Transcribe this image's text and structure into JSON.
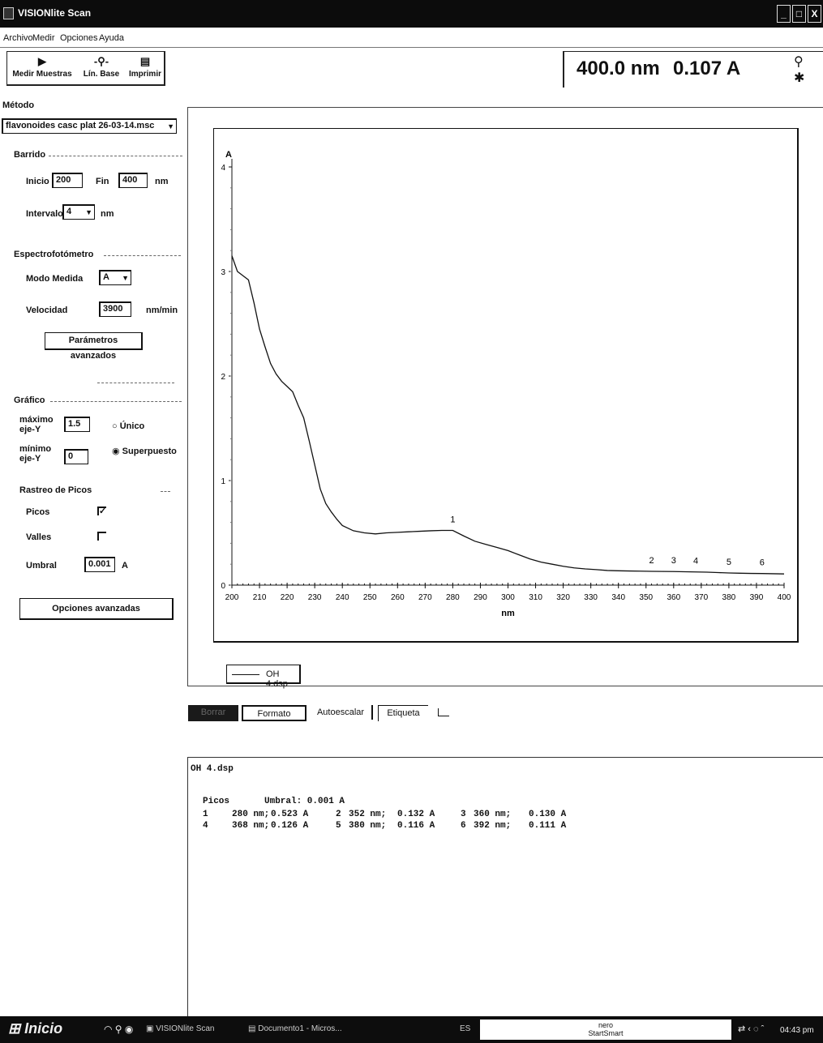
{
  "window": {
    "title": "VISIONlite Scan",
    "controls": [
      "_",
      "□",
      "X"
    ]
  },
  "menu": [
    "Archivo",
    "Medir",
    "Opciones",
    "Ayuda"
  ],
  "toolbar": {
    "measure_label": "Medir Muestras",
    "baseline_label": "Lín. Base",
    "print_label": "Imprimir"
  },
  "readout": {
    "wavelength": "400.0 nm",
    "absorbance": "0.107 A"
  },
  "method": {
    "label": "Método",
    "value": "flavonoides casc plat 26-03-14.msc"
  },
  "scan": {
    "label": "Barrido",
    "start_label": "Inicio",
    "start_value": "200",
    "end_label": "Fin",
    "end_value": "400",
    "unit": "nm",
    "interval_label": "Intervalo",
    "interval_value": "4",
    "interval_unit": "nm"
  },
  "spectro": {
    "label": "Espectrofotómetro",
    "mode_label": "Modo Medida",
    "mode_value": "A",
    "speed_label": "Velocidad",
    "speed_value": "3900",
    "speed_unit": "nm/min",
    "advanced_button": "Parámetros avanzados"
  },
  "graph_settings": {
    "label": "Gráfico",
    "ymax_label_1": "máximo",
    "ymax_label_2": "eje-Y",
    "ymax_value": "1.5",
    "ymin_label_1": "mínimo",
    "ymin_label_2": "eje-Y",
    "ymin_value": "0",
    "single_label": "Único",
    "overlay_label": "Superpuesto",
    "selected": "Superpuesto"
  },
  "peak_tracking": {
    "label": "Rastreo de Picos",
    "peaks_label": "Picos",
    "peaks_checked": true,
    "valleys_label": "Valles",
    "valleys_checked": false,
    "threshold_label": "Umbral",
    "threshold_value": "0.001",
    "threshold_unit": "A",
    "advanced_button": "Opciones avanzadas"
  },
  "graph_buttons": [
    "Borrar",
    "Formato",
    "Autoescalar",
    "Etiqueta"
  ],
  "legend": {
    "file": "OH 4.dsp"
  },
  "results": {
    "file": "OH 4.dsp",
    "header_peaks": "Picos",
    "header_threshold": "Umbral: 0.001 A",
    "rows": [
      [
        "1",
        "280 nm;",
        "0.523 A",
        "2",
        "352 nm;",
        "0.132 A",
        "3",
        "360 nm;",
        "0.130 A"
      ],
      [
        "4",
        "368 nm;",
        "0.126 A",
        "5",
        "380 nm;",
        "0.116 A",
        "6",
        "392 nm;",
        "0.111 A"
      ]
    ]
  },
  "chart_data": {
    "type": "line",
    "xlabel": "nm",
    "ylabel": "A",
    "xlim": [
      200,
      400
    ],
    "ylim": [
      0,
      4
    ],
    "xticks": [
      200,
      210,
      220,
      230,
      240,
      250,
      260,
      270,
      280,
      290,
      300,
      310,
      320,
      330,
      340,
      350,
      360,
      370,
      380,
      390,
      400
    ],
    "yticks": [
      0,
      1,
      2,
      3,
      4
    ],
    "series": [
      {
        "name": "OH 4.dsp",
        "x": [
          200,
          202,
          206,
          208,
          210,
          212,
          214,
          216,
          218,
          220,
          222,
          224,
          226,
          228,
          230,
          232,
          234,
          236,
          238,
          240,
          244,
          248,
          252,
          256,
          260,
          264,
          268,
          272,
          276,
          280,
          284,
          288,
          292,
          296,
          300,
          304,
          308,
          312,
          316,
          320,
          324,
          328,
          332,
          336,
          340,
          344,
          348,
          352,
          356,
          360,
          364,
          368,
          372,
          376,
          380,
          384,
          388,
          392,
          396,
          400
        ],
        "y": [
          3.15,
          3.0,
          2.92,
          2.7,
          2.45,
          2.28,
          2.12,
          2.02,
          1.95,
          1.9,
          1.85,
          1.72,
          1.6,
          1.38,
          1.15,
          0.92,
          0.78,
          0.7,
          0.63,
          0.57,
          0.52,
          0.5,
          0.49,
          0.5,
          0.505,
          0.51,
          0.515,
          0.52,
          0.523,
          0.523,
          0.47,
          0.42,
          0.39,
          0.36,
          0.33,
          0.29,
          0.25,
          0.22,
          0.2,
          0.18,
          0.165,
          0.155,
          0.148,
          0.14,
          0.137,
          0.135,
          0.134,
          0.132,
          0.131,
          0.13,
          0.128,
          0.126,
          0.124,
          0.12,
          0.116,
          0.114,
          0.112,
          0.111,
          0.109,
          0.107
        ]
      }
    ],
    "annotations": [
      {
        "label": "1",
        "x": 280
      },
      {
        "label": "2",
        "x": 352
      },
      {
        "label": "3",
        "x": 360
      },
      {
        "label": "4",
        "x": 368
      },
      {
        "label": "5",
        "x": 380
      },
      {
        "label": "6",
        "x": 392
      }
    ]
  },
  "taskbar": {
    "start": "Inicio",
    "tasks": [
      "VISIONlite Scan",
      "Documento1 - Micros..."
    ],
    "lang": "ES",
    "nero_1": "nero",
    "nero_2": "StartSmart",
    "clock": "04:43 pm"
  }
}
